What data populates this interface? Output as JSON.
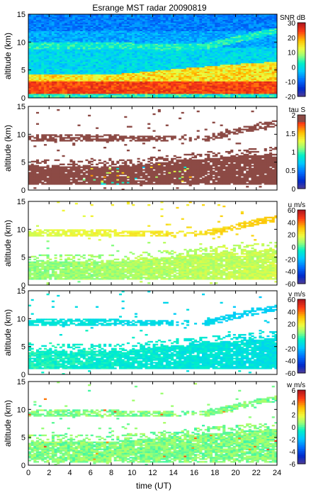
{
  "title": "Esrange MST radar 20090819",
  "xlabel": "time (UT)",
  "chart_data": [
    {
      "type": "heatmap",
      "title": "Esrange MST radar 20090819",
      "ylabel": "altitude (km)",
      "xlim": [
        0,
        24
      ],
      "ylim": [
        0,
        15
      ],
      "xticks": [
        0,
        2,
        4,
        6,
        8,
        10,
        12,
        14,
        16,
        18,
        20,
        22,
        24
      ],
      "yticks": [
        0,
        5,
        10,
        15
      ],
      "colorbar": {
        "label": "SNR dB",
        "min": -20,
        "max": 30,
        "ticks": [
          30,
          20,
          10,
          0,
          -10,
          -20
        ]
      },
      "field": "snr"
    },
    {
      "type": "heatmap",
      "ylabel": "altitude (km)",
      "xlim": [
        0,
        24
      ],
      "ylim": [
        0,
        15
      ],
      "yticks": [
        0,
        5,
        10,
        15
      ],
      "colorbar": {
        "label": "tau S",
        "min": 0,
        "max": 2,
        "ticks": [
          2,
          1.5,
          1,
          0.5,
          0
        ]
      },
      "field": "tau"
    },
    {
      "type": "heatmap",
      "ylabel": "altitude (km)",
      "xlim": [
        0,
        24
      ],
      "ylim": [
        0,
        15
      ],
      "yticks": [
        0,
        5,
        10,
        15
      ],
      "colorbar": {
        "label": "u m/s",
        "min": -60,
        "max": 60,
        "ticks": [
          60,
          40,
          20,
          0,
          -20,
          -40,
          -60
        ]
      },
      "field": "u"
    },
    {
      "type": "heatmap",
      "ylabel": "altitude (km)",
      "xlim": [
        0,
        24
      ],
      "ylim": [
        0,
        15
      ],
      "yticks": [
        0,
        5,
        10,
        15
      ],
      "colorbar": {
        "label": "v m/s",
        "min": -60,
        "max": 60,
        "ticks": [
          60,
          40,
          20,
          0,
          -20,
          -40,
          -60
        ]
      },
      "field": "v"
    },
    {
      "type": "heatmap",
      "ylabel": "altitude (km)",
      "xlabel": "time (UT)",
      "xlim": [
        0,
        24
      ],
      "ylim": [
        0,
        15
      ],
      "xticks": [
        0,
        2,
        4,
        6,
        8,
        10,
        12,
        14,
        16,
        18,
        20,
        22,
        24
      ],
      "yticks": [
        0,
        5,
        10,
        15
      ],
      "colorbar": {
        "label": "w m/s",
        "min": -6,
        "max": 6,
        "ticks": [
          6,
          4,
          2,
          0,
          -2,
          -4,
          -6
        ]
      },
      "field": "w"
    }
  ]
}
